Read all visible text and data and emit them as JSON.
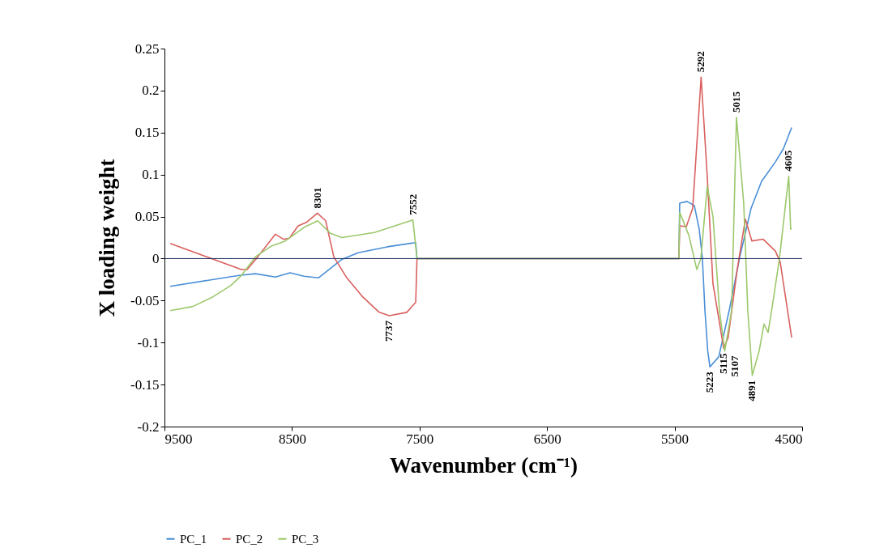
{
  "chart_data": {
    "type": "line",
    "xlabel": "Wavenumber (cm⁻¹)",
    "ylabel": "X loading weight",
    "xlim": [
      9500,
      4500
    ],
    "xticks": [
      9500,
      8500,
      7500,
      6500,
      5500,
      4500
    ],
    "ylim": [
      -0.2,
      0.25
    ],
    "yticks": [
      -0.2,
      -0.15,
      -0.1,
      -0.05,
      0,
      0.05,
      0.1,
      0.15,
      0.2,
      0.25
    ],
    "grid": false,
    "legend": "bottom",
    "ref_lines": [
      {
        "axis": "y",
        "value": 0,
        "color": "#1f2f5f"
      }
    ],
    "series": [
      {
        "name": "PC_1",
        "color": "#4a8fd6",
        "x": [
          9455,
          8915,
          8788,
          8630,
          8515,
          8407,
          8293,
          8217,
          8109,
          7982,
          7753,
          7530,
          7520,
          5466,
          5460,
          5402,
          5345,
          5307,
          5282,
          5262,
          5240,
          5223,
          5154,
          5072,
          4990,
          4900,
          4818,
          4710,
          4646,
          4582
        ],
        "values": [
          -0.033,
          -0.02,
          -0.018,
          -0.022,
          -0.017,
          -0.021,
          -0.023,
          -0.014,
          -0.001,
          0.007,
          0.014,
          0.019,
          0,
          0,
          0.066,
          0.068,
          0.063,
          0.035,
          0,
          -0.062,
          -0.11,
          -0.129,
          -0.117,
          -0.062,
          0.001,
          0.06,
          0.092,
          0.115,
          0.131,
          0.156
        ]
      },
      {
        "name": "PC_2",
        "color": "#d9605f",
        "x": [
          9455,
          8896,
          8852,
          8769,
          8630,
          8566,
          8522,
          8452,
          8388,
          8301,
          8236,
          8172,
          8070,
          7943,
          7816,
          7737,
          7600,
          7530,
          7520,
          5466,
          5460,
          5408,
          5358,
          5292,
          5244,
          5199,
          5115,
          5080,
          5009,
          4945,
          4894,
          4805,
          4710,
          4672,
          4582
        ],
        "values": [
          0.018,
          -0.013,
          -0.013,
          0.002,
          0.029,
          0.023,
          0.024,
          0.039,
          0.043,
          0.054,
          0.045,
          0.002,
          -0.023,
          -0.046,
          -0.064,
          -0.068,
          -0.064,
          -0.052,
          0,
          0,
          0.039,
          0.038,
          0.06,
          0.216,
          0.098,
          -0.03,
          -0.107,
          -0.094,
          -0.013,
          0.047,
          0.021,
          0.023,
          0.009,
          -0.004,
          -0.094
        ]
      },
      {
        "name": "PC_3",
        "color": "#9cc86c",
        "x": [
          9455,
          9278,
          9125,
          8979,
          8896,
          8788,
          8661,
          8553,
          8407,
          8299,
          8198,
          8109,
          7854,
          7552,
          7520,
          5466,
          5460,
          5389,
          5326,
          5294,
          5244,
          5199,
          5148,
          5107,
          5053,
          5015,
          4958,
          4926,
          4891,
          4837,
          4799,
          4767,
          4723,
          4678,
          4605,
          4590,
          4582
        ],
        "values": [
          -0.062,
          -0.057,
          -0.046,
          -0.032,
          -0.02,
          0.002,
          0.015,
          0.021,
          0.037,
          0.045,
          0.03,
          0.025,
          0.031,
          0.046,
          0,
          0,
          0.055,
          0.028,
          -0.013,
          0,
          0.086,
          0.05,
          -0.062,
          -0.11,
          -0.062,
          0.168,
          0.066,
          -0.062,
          -0.139,
          -0.11,
          -0.078,
          -0.088,
          -0.046,
          0,
          0.098,
          0.035,
          0.036
        ]
      }
    ],
    "annotations": [
      {
        "text": "8301",
        "x": 8301,
        "y": 0.054
      },
      {
        "text": "7552",
        "x": 7552,
        "y": 0.046
      },
      {
        "text": "7737",
        "x": 7737,
        "y": -0.068
      },
      {
        "text": "5292",
        "x": 5292,
        "y": 0.216
      },
      {
        "text": "5015",
        "x": 5015,
        "y": 0.168
      },
      {
        "text": "4605",
        "x": 4605,
        "y": 0.098
      },
      {
        "text": "5115",
        "x": 5115,
        "y": -0.107
      },
      {
        "text": "5223",
        "x": 5223,
        "y": -0.129
      },
      {
        "text": "5107",
        "x": 5107,
        "y": -0.11
      },
      {
        "text": "4891",
        "x": 4891,
        "y": -0.139
      }
    ]
  }
}
